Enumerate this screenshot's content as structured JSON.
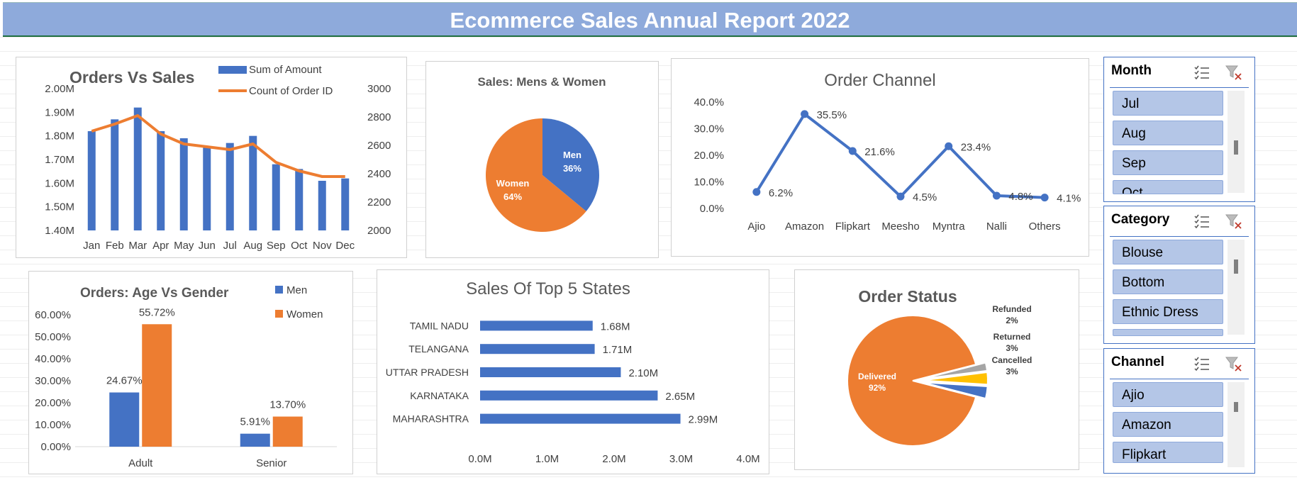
{
  "report": {
    "title": "Ecommerce Sales Annual Report 2022"
  },
  "colors": {
    "blue": "#4472c4",
    "orange": "#ed7d31",
    "gray": "#a5a5a5",
    "gold": "#ffc000",
    "header": "#8eaadb"
  },
  "slicers": {
    "month": {
      "title": "Month",
      "items": [
        "Jul",
        "Aug",
        "Sep",
        "Oct"
      ],
      "icons": [
        "multi-select-icon",
        "clear-filter-icon"
      ]
    },
    "category": {
      "title": "Category",
      "items": [
        "Blouse",
        "Bottom",
        "Ethnic Dress",
        ""
      ],
      "icons": [
        "multi-select-icon",
        "clear-filter-icon"
      ]
    },
    "channel": {
      "title": "Channel",
      "items": [
        "Ajio",
        "Amazon",
        "Flipkart"
      ],
      "icons": [
        "multi-select-icon",
        "clear-filter-icon"
      ]
    }
  },
  "chart_data": [
    {
      "id": "orders-vs-sales",
      "type": "bar",
      "title": "Orders Vs Sales",
      "categories": [
        "Jan",
        "Feb",
        "Mar",
        "Apr",
        "May",
        "Jun",
        "Jul",
        "Aug",
        "Sep",
        "Oct",
        "Nov",
        "Dec"
      ],
      "series": [
        {
          "name": "Sum of Amount",
          "type": "bar",
          "axis": "left",
          "values": [
            1.82,
            1.87,
            1.92,
            1.82,
            1.79,
            1.75,
            1.77,
            1.8,
            1.68,
            1.66,
            1.61,
            1.62
          ]
        },
        {
          "name": "Count of Order ID",
          "type": "line",
          "axis": "right",
          "values": [
            2700,
            2750,
            2810,
            2680,
            2610,
            2590,
            2570,
            2610,
            2480,
            2420,
            2380,
            2380
          ]
        }
      ],
      "ylim": [
        1.4,
        2.0
      ],
      "yticks": [
        "1.40M",
        "1.50M",
        "1.60M",
        "1.70M",
        "1.80M",
        "1.90M",
        "2.00M"
      ],
      "y2lim": [
        2000,
        3000
      ],
      "y2ticks": [
        "2000",
        "2200",
        "2400",
        "2600",
        "2800",
        "3000"
      ],
      "legend": "top-right"
    },
    {
      "id": "sales-mens-women",
      "type": "pie",
      "title": "Sales: Mens & Women",
      "labels": [
        "Men",
        "Women"
      ],
      "values": [
        36,
        64
      ],
      "value_labels": [
        "36%",
        "64%"
      ]
    },
    {
      "id": "order-channel",
      "type": "line",
      "title": "Order Channel",
      "categories": [
        "Ajio",
        "Amazon",
        "Flipkart",
        "Meesho",
        "Myntra",
        "Nalli",
        "Others"
      ],
      "values": [
        6.2,
        35.5,
        21.6,
        4.5,
        23.4,
        4.8,
        4.1
      ],
      "value_labels": [
        "6.2%",
        "35.5%",
        "21.6%",
        "4.5%",
        "23.4%",
        "4.8%",
        "4.1%"
      ],
      "ylim": [
        0,
        40
      ],
      "yticks": [
        "0.0%",
        "10.0%",
        "20.0%",
        "30.0%",
        "40.0%"
      ]
    },
    {
      "id": "orders-age-gender",
      "type": "bar",
      "title": "Orders: Age Vs Gender",
      "categories": [
        "Adult",
        "Senior"
      ],
      "series": [
        {
          "name": "Men",
          "values": [
            24.67,
            5.91
          ],
          "value_labels": [
            "24.67%",
            "5.91%"
          ]
        },
        {
          "name": "Women",
          "values": [
            55.72,
            13.7
          ],
          "value_labels": [
            "55.72%",
            "13.70%"
          ]
        }
      ],
      "ylim": [
        0,
        60
      ],
      "yticks": [
        "0.00%",
        "10.00%",
        "20.00%",
        "30.00%",
        "40.00%",
        "50.00%",
        "60.00%"
      ],
      "legend": "top-right"
    },
    {
      "id": "sales-top-5-states",
      "type": "bar",
      "orientation": "horizontal",
      "title": "Sales Of Top 5 States",
      "categories": [
        "TAMIL NADU",
        "TELANGANA",
        "UTTAR PRADESH",
        "KARNATAKA",
        "MAHARASHTRA"
      ],
      "values": [
        1.68,
        1.71,
        2.1,
        2.65,
        2.99
      ],
      "value_labels": [
        "1.68M",
        "1.71M",
        "2.10M",
        "2.65M",
        "2.99M"
      ],
      "xlim": [
        0,
        4
      ],
      "xticks": [
        "0.0M",
        "1.0M",
        "2.0M",
        "3.0M",
        "4.0M"
      ]
    },
    {
      "id": "order-status",
      "type": "pie",
      "title": "Order Status",
      "labels": [
        "Delivered",
        "Refunded",
        "Returned",
        "Cancelled"
      ],
      "values": [
        92,
        2,
        3,
        3
      ],
      "value_labels": [
        "92%",
        "2%",
        "3%",
        "3%"
      ]
    }
  ]
}
